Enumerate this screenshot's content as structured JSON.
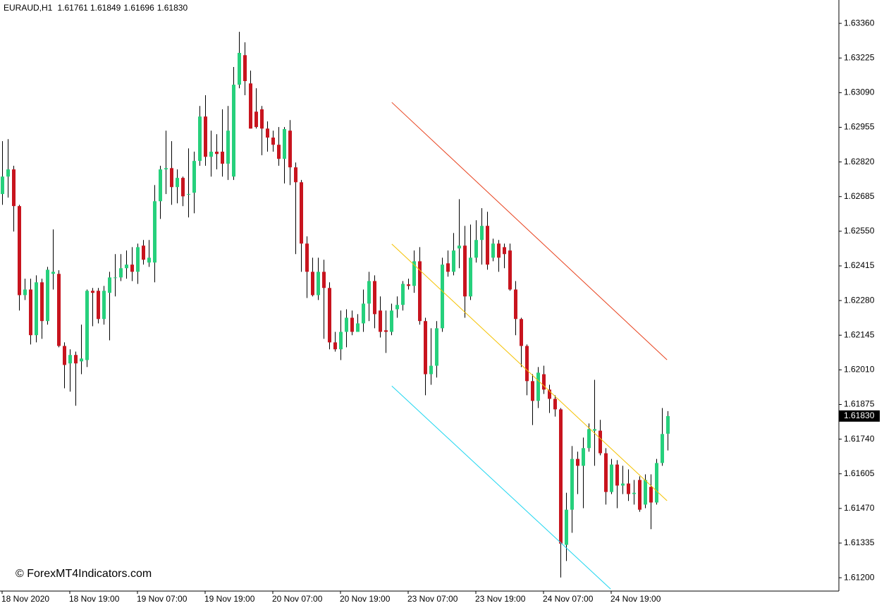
{
  "chart_data": {
    "type": "candlestick",
    "title": "EURAUD,H1",
    "header_ohlc": [
      "1.61761",
      "1.61849",
      "1.61696",
      "1.61830"
    ],
    "watermark": "© ForexMT4Indicators.com",
    "bull_color": "#26d07c",
    "bear_color": "#c8141e",
    "wick_color": "#000000",
    "ylim": [
      1.61148,
      1.63451
    ],
    "yticks": [
      {
        "value": 1.6336,
        "label": "1.63360"
      },
      1.63225,
      {
        "value": 1.6309,
        "label": "1.63090"
      },
      1.62955,
      {
        "value": 1.6282,
        "label": "1.62820"
      },
      1.62685,
      {
        "value": 1.6255,
        "label": "1.62550"
      },
      1.62415,
      {
        "value": 1.6228,
        "label": "1.62280"
      },
      1.62145,
      {
        "value": 1.6201,
        "label": "1.62010"
      },
      1.61875,
      {
        "value": 1.6174,
        "label": "1.61740"
      },
      1.61605,
      {
        "value": 1.6147,
        "label": "1.61470"
      },
      1.61335,
      {
        "value": 1.612,
        "label": "1.61200"
      }
    ],
    "current_price": {
      "value": 1.6183,
      "label": "1.61830"
    },
    "categories": [
      "18 Nov 2020",
      null,
      null,
      null,
      null,
      null,
      null,
      null,
      null,
      null,
      null,
      null,
      "18 Nov 19:00",
      null,
      null,
      null,
      null,
      null,
      null,
      null,
      null,
      null,
      null,
      null,
      "19 Nov 07:00",
      null,
      null,
      null,
      null,
      null,
      null,
      null,
      null,
      null,
      null,
      null,
      "19 Nov 19:00",
      null,
      null,
      null,
      null,
      null,
      null,
      null,
      null,
      null,
      null,
      null,
      "20 Nov 07:00",
      null,
      null,
      null,
      null,
      null,
      null,
      null,
      null,
      null,
      null,
      null,
      "20 Nov 19:00",
      null,
      null,
      null,
      null,
      null,
      null,
      null,
      null,
      null,
      null,
      null,
      "23 Nov 07:00",
      null,
      null,
      null,
      null,
      null,
      null,
      null,
      null,
      null,
      null,
      null,
      "23 Nov 19:00",
      null,
      null,
      null,
      null,
      null,
      null,
      null,
      null,
      null,
      null,
      null,
      "24 Nov 07:00",
      null,
      null,
      null,
      null,
      null,
      null,
      null,
      null,
      null,
      null,
      null,
      "24 Nov 19:00",
      null,
      null,
      null,
      null,
      null,
      null,
      null,
      null,
      null,
      null
    ],
    "open": [
      1.62695,
      1.62763,
      1.62791,
      1.62648,
      1.62301,
      1.62323,
      1.62145,
      1.62351,
      1.622,
      1.62384,
      1.62384,
      1.62103,
      1.62035,
      1.62068,
      1.62043,
      1.62048,
      1.62318,
      1.62318,
      1.62208,
      1.6231,
      1.6237,
      1.6237,
      1.62406,
      1.6242,
      1.62392,
      1.62494,
      1.62428,
      1.62428,
      1.62667,
      1.62791,
      1.62796,
      1.62722,
      1.62758,
      1.62695,
      1.627,
      1.62824,
      1.62997,
      1.6284,
      1.6286,
      1.6286,
      1.62813,
      1.62763,
      1.63121,
      1.63236,
      1.63126,
      1.63016,
      1.63025,
      1.6295,
      1.62915,
      1.62887,
      1.62832,
      1.62942,
      1.62799,
      1.62741,
      1.62502,
      1.62392,
      1.62301,
      1.62392,
      1.62329,
      1.62117,
      1.6209,
      1.62158,
      1.62213,
      1.62158,
      1.62191,
      1.62268,
      1.62356,
      1.62241,
      1.62164,
      1.62158,
      1.62246,
      1.62263,
      1.62343,
      1.62337,
      1.62433,
      1.622,
      1.61993,
      1.62026,
      1.62172,
      1.62425,
      1.62392,
      1.62483,
      1.62494,
      1.62296,
      1.62447,
      1.62516,
      1.62571,
      1.62447,
      1.62502,
      1.62488,
      1.62475,
      1.62323,
      1.62208,
      1.62103,
      1.61966,
      1.61889,
      1.61993,
      1.61933,
      1.61897,
      1.61856,
      1.61328,
      1.61465,
      1.61663,
      1.61636,
      1.61705,
      1.61773,
      1.61773,
      1.61685,
      1.61534,
      1.61641,
      1.61559,
      1.61567,
      1.61526,
      1.61581,
      1.61485,
      1.61554,
      1.61493,
      1.61647,
      1.61761
    ],
    "high": [
      1.62901,
      1.62909,
      1.62805,
      1.62653,
      1.62365,
      1.62365,
      1.62378,
      1.62365,
      1.62411,
      1.62557,
      1.62398,
      1.62117,
      1.6209,
      1.62081,
      1.62186,
      1.62323,
      1.62329,
      1.62329,
      1.62337,
      1.62392,
      1.62461,
      1.62461,
      1.62475,
      1.62488,
      1.62502,
      1.62516,
      1.62516,
      1.6273,
      1.62805,
      1.62942,
      1.62901,
      1.62791,
      1.62763,
      1.62873,
      1.6286,
      1.63038,
      1.6308,
      1.62942,
      1.62928,
      1.63025,
      1.63038,
      1.6319,
      1.63327,
      1.63286,
      1.63176,
      1.63107,
      1.63038,
      1.62978,
      1.62942,
      1.62956,
      1.62956,
      1.62983,
      1.62818,
      1.6275,
      1.6253,
      1.62447,
      1.62447,
      1.62439,
      1.62351,
      1.62158,
      1.62241,
      1.62246,
      1.62241,
      1.62227,
      1.62323,
      1.62392,
      1.62378,
      1.62296,
      1.62241,
      1.62268,
      1.62296,
      1.62356,
      1.62365,
      1.62475,
      1.62488,
      1.62213,
      1.62172,
      1.622,
      1.62447,
      1.62475,
      1.62543,
      1.62675,
      1.62571,
      1.62576,
      1.62593,
      1.6264,
      1.62626,
      1.62521,
      1.62516,
      1.62502,
      1.62502,
      1.62356,
      1.62213,
      1.62109,
      1.61993,
      1.62021,
      1.62026,
      1.61952,
      1.61911,
      1.61861,
      1.61531,
      1.61713,
      1.61691,
      1.61746,
      1.61801,
      1.61971,
      1.61815,
      1.61705,
      1.61663,
      1.61658,
      1.61636,
      1.61622,
      1.61581,
      1.61595,
      1.61603,
      1.61603,
      1.61663,
      1.61861,
      1.61849
    ],
    "low": [
      1.62653,
      1.62681,
      1.62549,
      1.62241,
      1.62282,
      1.62109,
      1.62117,
      1.62131,
      1.62186,
      1.62323,
      1.62098,
      1.61938,
      1.61925,
      1.6187,
      1.61993,
      1.62021,
      1.6218,
      1.62191,
      1.62186,
      1.62125,
      1.62296,
      1.62356,
      1.62365,
      1.62356,
      1.62345,
      1.6242,
      1.62411,
      1.62351,
      1.62598,
      1.62695,
      1.62653,
      1.62659,
      1.62648,
      1.62604,
      1.6262,
      1.62805,
      1.62805,
      1.62763,
      1.62791,
      1.62763,
      1.6275,
      1.6275,
      1.63107,
      1.6308,
      1.6295,
      1.6295,
      1.62846,
      1.6286,
      1.6286,
      1.62805,
      1.62736,
      1.6273,
      1.62461,
      1.62392,
      1.6229,
      1.62296,
      1.62282,
      1.62131,
      1.6209,
      1.62081,
      1.62048,
      1.62098,
      1.62145,
      1.62158,
      1.62158,
      1.622,
      1.62172,
      1.62136,
      1.62076,
      1.62145,
      1.62213,
      1.62241,
      1.62323,
      1.6231,
      1.62186,
      1.61911,
      1.61952,
      1.6198,
      1.62158,
      1.62373,
      1.62378,
      1.62406,
      1.62213,
      1.62282,
      1.62428,
      1.6242,
      1.624,
      1.62433,
      1.62392,
      1.62406,
      1.62318,
      1.62145,
      1.62021,
      1.61911,
      1.61795,
      1.61861,
      1.61916,
      1.61842,
      1.61828,
      1.61201,
      1.61265,
      1.61375,
      1.61526,
      1.61471,
      1.61691,
      1.61636,
      1.61677,
      1.61485,
      1.61526,
      1.61471,
      1.61526,
      1.61499,
      1.61485,
      1.61457,
      1.61471,
      1.61389,
      1.61485,
      1.61636,
      1.61696
    ],
    "close": [
      1.62763,
      1.62791,
      1.62648,
      1.62301,
      1.62323,
      1.62145,
      1.62351,
      1.622,
      1.624,
      1.62392,
      1.62103,
      1.62029,
      1.62068,
      1.62035,
      1.62054,
      1.62318,
      1.6231,
      1.62208,
      1.62318,
      1.6237,
      1.6237,
      1.62406,
      1.6242,
      1.62392,
      1.62488,
      1.62439,
      1.62447,
      1.62667,
      1.62791,
      1.62796,
      1.62722,
      1.62758,
      1.62686,
      1.62695,
      1.62824,
      1.62997,
      1.6284,
      1.6286,
      1.62851,
      1.62813,
      1.62942,
      1.63121,
      1.63245,
      1.63135,
      1.6295,
      1.62956,
      1.6295,
      1.62915,
      1.62887,
      1.62832,
      1.62948,
      1.62799,
      1.62741,
      1.62502,
      1.62392,
      1.62301,
      1.62392,
      1.62329,
      1.62117,
      1.6209,
      1.62158,
      1.62213,
      1.62158,
      1.62191,
      1.62268,
      1.62356,
      1.62227,
      1.62158,
      1.62158,
      1.62241,
      1.62263,
      1.62345,
      1.62337,
      1.62433,
      1.622,
      1.61993,
      1.62026,
      1.62172,
      1.6242,
      1.62392,
      1.62475,
      1.62494,
      1.62296,
      1.62447,
      1.62516,
      1.62571,
      1.6242,
      1.62502,
      1.62447,
      1.62461,
      1.62323,
      1.62208,
      1.62103,
      1.61966,
      1.61889,
      1.61999,
      1.61933,
      1.61897,
      1.61856,
      1.61333,
      1.61465,
      1.61663,
      1.61636,
      1.61705,
      1.61779,
      1.61779,
      1.61685,
      1.61534,
      1.61641,
      1.61559,
      1.61567,
      1.61526,
      1.61531,
      1.61465,
      1.61581,
      1.61493,
      1.61647,
      1.6176,
      1.6183
    ],
    "trendlines": [
      {
        "color": "#e8401c",
        "start": [
          69.1,
          1.63052
        ],
        "end": [
          117.9,
          1.62049
        ]
      },
      {
        "color": "#f5c200",
        "start": [
          69.1,
          1.625
        ],
        "end": [
          117.9,
          1.615
        ]
      },
      {
        "color": "#1ed6f0",
        "start": [
          69.1,
          1.61947
        ],
        "end": [
          107.9,
          1.61156
        ]
      }
    ]
  }
}
